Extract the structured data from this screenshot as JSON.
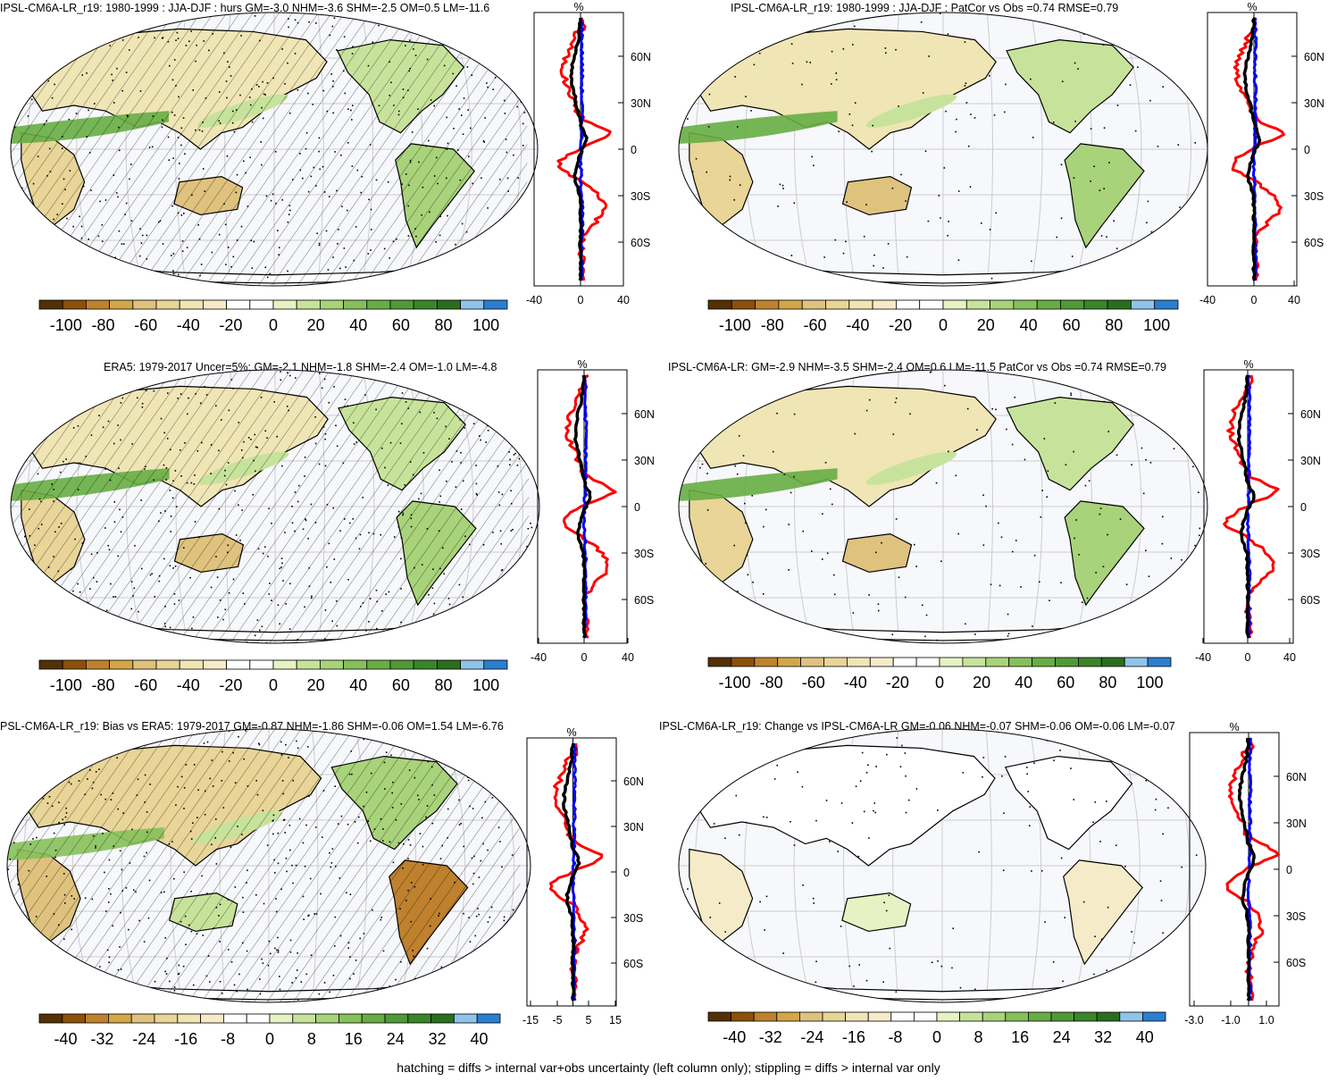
{
  "colorbar": {
    "colors": [
      "#543005",
      "#8c510a",
      "#bf812d",
      "#d3a748",
      "#dfc27d",
      "#e8d597",
      "#f0e5b5",
      "#f6ebc8",
      "#ffffff",
      "#ffffff",
      "#e6f2c3",
      "#c7e39b",
      "#a8d37a",
      "#86c05a",
      "#67ad44",
      "#4f9a37",
      "#3a852a",
      "#2b6e20",
      "#8fc4e8",
      "#2b7fd0"
    ],
    "labels_pct": [
      "-100",
      "-80",
      "-60",
      "-40",
      "-20",
      "0",
      "20",
      "40",
      "60",
      "80",
      "100"
    ],
    "labels_bias": [
      "-40",
      "-32",
      "-24",
      "-16",
      "-8",
      "0",
      "8",
      "16",
      "24",
      "32",
      "40"
    ]
  },
  "zonal_lat_labels": [
    "60N",
    "30N",
    "0",
    "30S",
    "60S"
  ],
  "zonal_unit": "%",
  "panels": [
    {
      "id": "p1",
      "title": "IPSL-CM6A-LR_r19: 1980-1999 : JJA-DJF : hurs GM=-3.0 NHM=-3.6 SHM=-2.5 OM=0.5 LM=-11.6",
      "x_ticks": [
        "-40",
        "0",
        "40"
      ],
      "hatched": true
    },
    {
      "id": "p2",
      "title": "IPSL-CM6A-LR_r19: 1980-1999 : JJA-DJF : PatCor vs Obs =0.74 RMSE=0.79",
      "x_ticks": [
        "-40",
        "0",
        "40"
      ],
      "hatched": false
    },
    {
      "id": "p3",
      "title": "ERA5: 1979-2017 Uncer=5%: GM=-2.1 NHM=-1.8 SHM=-2.4 OM=-1.0 LM=-4.8",
      "x_ticks": [
        "-40",
        "0",
        "40"
      ],
      "hatched": true
    },
    {
      "id": "p4",
      "title": "IPSL-CM6A-LR: GM=-2.9 NHM=-3.5 SHM=-2.4 OM=0.6 LM=-11.5 PatCor vs Obs =0.74 RMSE=0.79",
      "x_ticks": [
        "-40",
        "0",
        "40"
      ],
      "hatched": false
    },
    {
      "id": "p5",
      "title": "PSL-CM6A-LR_r19: Bias vs ERA5: 1979-2017 GM=-0.87 NHM=-1.86 SHM=-0.06 OM=1.54 LM=-6.76",
      "x_ticks": [
        "-15",
        "-5",
        "5",
        "15"
      ],
      "hatched": true
    },
    {
      "id": "p6",
      "title": "IPSL-CM6A-LR_r19: Change vs IPSL-CM6A-LR GM=-0.06 NHM=-0.07 SHM=-0.06 OM=-0.06 LM=-0.07",
      "x_ticks": [
        "-3.0",
        "-1.0",
        "1.0"
      ],
      "hatched": false
    }
  ],
  "footer": "hatching = diffs > internal var+obs uncertainty (left column only); stippling = diffs > internal var only"
}
